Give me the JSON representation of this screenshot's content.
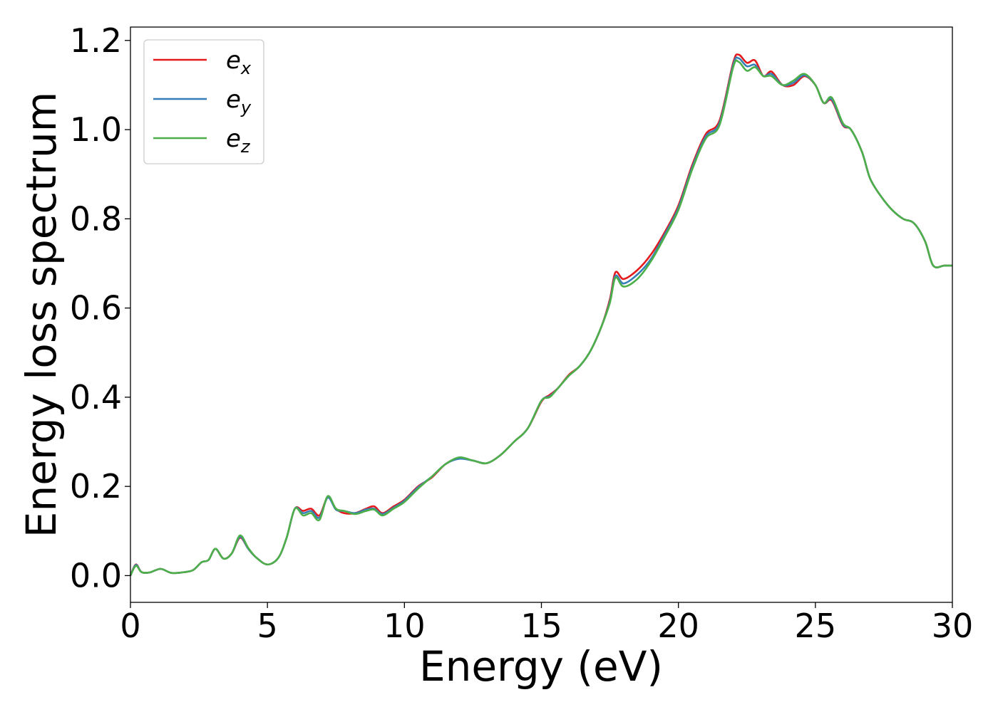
{
  "chart_data": {
    "type": "line",
    "title": "",
    "xlabel": "Energy (eV)",
    "ylabel": "Energy loss spectrum",
    "xlim": [
      0,
      30
    ],
    "ylim": [
      -0.06,
      1.23
    ],
    "xticks": [
      0,
      5,
      10,
      15,
      20,
      25,
      30
    ],
    "yticks": [
      0.0,
      0.2,
      0.4,
      0.6,
      0.8,
      1.0,
      1.2
    ],
    "xtick_labels": [
      "0",
      "5",
      "10",
      "15",
      "20",
      "25",
      "30"
    ],
    "ytick_labels": [
      "0.0",
      "0.2",
      "0.4",
      "0.6",
      "0.8",
      "1.0",
      "1.2"
    ],
    "grid": false,
    "legend_position": "top-left",
    "x": [
      0,
      0.2,
      0.4,
      0.7,
      1.1,
      1.5,
      2.0,
      2.3,
      2.6,
      2.85,
      3.1,
      3.4,
      3.7,
      4.0,
      4.3,
      4.6,
      5.0,
      5.4,
      5.7,
      6.0,
      6.3,
      6.6,
      6.9,
      7.2,
      7.5,
      7.8,
      8.2,
      8.6,
      8.9,
      9.2,
      9.6,
      10.0,
      10.5,
      11.0,
      11.5,
      12.0,
      12.5,
      13.0,
      13.5,
      14.0,
      14.5,
      15.0,
      15.3,
      15.6,
      16.0,
      16.4,
      16.8,
      17.2,
      17.5,
      17.7,
      18.0,
      18.5,
      19.0,
      19.5,
      20.0,
      20.5,
      21.0,
      21.5,
      22.0,
      22.2,
      22.5,
      22.8,
      23.1,
      23.4,
      23.8,
      24.2,
      24.6,
      25.0,
      25.3,
      25.6,
      26.0,
      26.3,
      26.7,
      27.0,
      27.4,
      27.8,
      28.2,
      28.6,
      29.0,
      29.3,
      29.7,
      30.0
    ],
    "series": [
      {
        "name": "e_x",
        "color": "#e41a1c",
        "values": [
          0.0,
          0.025,
          0.008,
          0.007,
          0.015,
          0.006,
          0.008,
          0.013,
          0.03,
          0.035,
          0.06,
          0.038,
          0.05,
          0.085,
          0.06,
          0.04,
          0.025,
          0.04,
          0.085,
          0.15,
          0.145,
          0.15,
          0.135,
          0.175,
          0.15,
          0.14,
          0.14,
          0.15,
          0.155,
          0.14,
          0.155,
          0.17,
          0.2,
          0.22,
          0.25,
          0.263,
          0.258,
          0.252,
          0.27,
          0.3,
          0.33,
          0.39,
          0.405,
          0.42,
          0.45,
          0.47,
          0.505,
          0.56,
          0.62,
          0.68,
          0.665,
          0.685,
          0.72,
          0.77,
          0.83,
          0.92,
          0.99,
          1.02,
          1.15,
          1.168,
          1.15,
          1.155,
          1.12,
          1.13,
          1.1,
          1.1,
          1.12,
          1.1,
          1.06,
          1.065,
          1.01,
          1.0,
          0.95,
          0.89,
          0.85,
          0.82,
          0.8,
          0.79,
          0.75,
          0.695,
          0.695,
          0.695
        ]
      },
      {
        "name": "e_y",
        "color": "#377eb8",
        "values": [
          0.0,
          0.024,
          0.008,
          0.007,
          0.015,
          0.006,
          0.008,
          0.013,
          0.03,
          0.035,
          0.06,
          0.038,
          0.05,
          0.087,
          0.06,
          0.04,
          0.025,
          0.04,
          0.085,
          0.15,
          0.14,
          0.145,
          0.13,
          0.175,
          0.148,
          0.145,
          0.14,
          0.148,
          0.15,
          0.138,
          0.152,
          0.168,
          0.198,
          0.222,
          0.25,
          0.262,
          0.258,
          0.252,
          0.27,
          0.3,
          0.33,
          0.392,
          0.402,
          0.42,
          0.448,
          0.47,
          0.505,
          0.56,
          0.615,
          0.672,
          0.655,
          0.675,
          0.71,
          0.765,
          0.825,
          0.915,
          0.985,
          1.015,
          1.145,
          1.16,
          1.142,
          1.145,
          1.12,
          1.125,
          1.1,
          1.105,
          1.122,
          1.1,
          1.06,
          1.068,
          1.012,
          1.0,
          0.95,
          0.89,
          0.85,
          0.82,
          0.8,
          0.79,
          0.75,
          0.695,
          0.695,
          0.695
        ]
      },
      {
        "name": "e_z",
        "color": "#4daf4a",
        "values": [
          0.0,
          0.022,
          0.008,
          0.007,
          0.015,
          0.006,
          0.008,
          0.013,
          0.03,
          0.035,
          0.06,
          0.038,
          0.05,
          0.09,
          0.062,
          0.04,
          0.025,
          0.04,
          0.085,
          0.15,
          0.135,
          0.14,
          0.125,
          0.178,
          0.15,
          0.145,
          0.138,
          0.145,
          0.148,
          0.135,
          0.15,
          0.165,
          0.195,
          0.222,
          0.25,
          0.265,
          0.258,
          0.252,
          0.27,
          0.3,
          0.33,
          0.392,
          0.4,
          0.42,
          0.448,
          0.47,
          0.505,
          0.56,
          0.612,
          0.668,
          0.648,
          0.665,
          0.705,
          0.76,
          0.82,
          0.91,
          0.98,
          1.01,
          1.14,
          1.152,
          1.132,
          1.14,
          1.12,
          1.12,
          1.1,
          1.11,
          1.125,
          1.1,
          1.06,
          1.072,
          1.015,
          1.0,
          0.95,
          0.89,
          0.85,
          0.82,
          0.8,
          0.79,
          0.75,
          0.695,
          0.695,
          0.695
        ]
      }
    ],
    "legend": [
      {
        "base": "e",
        "sub": "x",
        "color": "#e41a1c"
      },
      {
        "base": "e",
        "sub": "y",
        "color": "#377eb8"
      },
      {
        "base": "e",
        "sub": "z",
        "color": "#4daf4a"
      }
    ]
  }
}
